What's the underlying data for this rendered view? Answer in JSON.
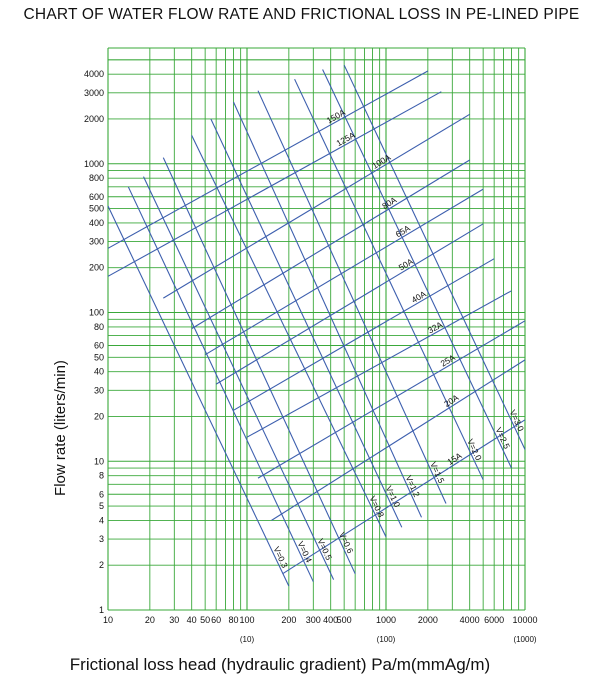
{
  "chart_data": {
    "type": "line",
    "title": "CHART OF WATER FLOW RATE AND FRICTIONAL LOSS IN PE-LINED PIPE",
    "xlabel": "Frictional loss head (hydraulic gradient)   Pa/m(mmAg/m)",
    "ylabel": "Flow rate (liters/min)",
    "x_scale": "log",
    "y_scale": "log",
    "xlim": [
      10,
      10000
    ],
    "ylim": [
      1,
      6000
    ],
    "grid": true,
    "x_ticks": [
      {
        "v": 10,
        "t": "10"
      },
      {
        "v": 20,
        "t": "20"
      },
      {
        "v": 30,
        "t": "30"
      },
      {
        "v": 40,
        "t": "40"
      },
      {
        "v": 50,
        "t": "50"
      },
      {
        "v": 60,
        "t": "60"
      },
      {
        "v": 80,
        "t": "80"
      },
      {
        "v": 100,
        "t": "100"
      },
      {
        "v": 200,
        "t": "200"
      },
      {
        "v": 300,
        "t": "300"
      },
      {
        "v": 400,
        "t": "400"
      },
      {
        "v": 500,
        "t": "500"
      },
      {
        "v": 1000,
        "t": "1000"
      },
      {
        "v": 2000,
        "t": "2000"
      },
      {
        "v": 4000,
        "t": "4000"
      },
      {
        "v": 6000,
        "t": "6000"
      },
      {
        "v": 10000,
        "t": "10000"
      }
    ],
    "x_secondary_ticks": [
      {
        "v": 100,
        "t": "(10)"
      },
      {
        "v": 1000,
        "t": "(100)"
      },
      {
        "v": 10000,
        "t": "(1000)"
      }
    ],
    "y_ticks": [
      {
        "v": 1,
        "t": "1"
      },
      {
        "v": 2,
        "t": "2"
      },
      {
        "v": 3,
        "t": "3"
      },
      {
        "v": 4,
        "t": "4"
      },
      {
        "v": 5,
        "t": "5"
      },
      {
        "v": 6,
        "t": "6"
      },
      {
        "v": 8,
        "t": "8"
      },
      {
        "v": 10,
        "t": "10"
      },
      {
        "v": 20,
        "t": "20"
      },
      {
        "v": 30,
        "t": "30"
      },
      {
        "v": 40,
        "t": "40"
      },
      {
        "v": 50,
        "t": "50"
      },
      {
        "v": 60,
        "t": "60"
      },
      {
        "v": 80,
        "t": "80"
      },
      {
        "v": 100,
        "t": "100"
      },
      {
        "v": 200,
        "t": "200"
      },
      {
        "v": 300,
        "t": "300"
      },
      {
        "v": 400,
        "t": "400"
      },
      {
        "v": 500,
        "t": "500"
      },
      {
        "v": 600,
        "t": "600"
      },
      {
        "v": 800,
        "t": "800"
      },
      {
        "v": 1000,
        "t": "1000"
      },
      {
        "v": 2000,
        "t": "2000"
      },
      {
        "v": 3000,
        "t": "3000"
      },
      {
        "v": 4000,
        "t": "4000"
      }
    ],
    "series": [
      {
        "name": "150A",
        "x": [
          10,
          2000
        ],
        "y": [
          270,
          4200
        ]
      },
      {
        "name": "125A",
        "x": [
          10,
          2500
        ],
        "y": [
          175,
          3050
        ]
      },
      {
        "name": "100A",
        "x": [
          25,
          4000
        ],
        "y": [
          125,
          2150
        ]
      },
      {
        "name": "80A",
        "x": [
          40,
          4000
        ],
        "y": [
          78,
          1060
        ]
      },
      {
        "name": "65A",
        "x": [
          50,
          5000
        ],
        "y": [
          52,
          675
        ]
      },
      {
        "name": "50A",
        "x": [
          60,
          5000
        ],
        "y": [
          33,
          395
        ]
      },
      {
        "name": "40A",
        "x": [
          80,
          6000
        ],
        "y": [
          22,
          230
        ]
      },
      {
        "name": "32A",
        "x": [
          100,
          8000
        ],
        "y": [
          14.5,
          140
        ]
      },
      {
        "name": "25A",
        "x": [
          120,
          10000
        ],
        "y": [
          7.7,
          88
        ]
      },
      {
        "name": "20A",
        "x": [
          150,
          10000
        ],
        "y": [
          4,
          48
        ]
      },
      {
        "name": "15A",
        "x": [
          180,
          10000
        ],
        "y": [
          1.75,
          19
        ]
      },
      {
        "name": "V=0.3",
        "x": [
          10,
          200
        ],
        "y": [
          520,
          1.45
        ]
      },
      {
        "name": "V=0.4",
        "x": [
          14,
          300
        ],
        "y": [
          700,
          1.55
        ]
      },
      {
        "name": "V=0.5",
        "x": [
          18,
          420
        ],
        "y": [
          820,
          1.6
        ]
      },
      {
        "name": "V=0.6",
        "x": [
          25,
          600
        ],
        "y": [
          1100,
          1.75
        ]
      },
      {
        "name": "V=0.8",
        "x": [
          40,
          1000
        ],
        "y": [
          1550,
          3.1
        ]
      },
      {
        "name": "V=1.0",
        "x": [
          55,
          1300
        ],
        "y": [
          2000,
          3.6
        ]
      },
      {
        "name": "V=1.2",
        "x": [
          80,
          1800
        ],
        "y": [
          2600,
          4.2
        ]
      },
      {
        "name": "V=1.5",
        "x": [
          120,
          2700
        ],
        "y": [
          3100,
          5.2
        ]
      },
      {
        "name": "V=2.0",
        "x": [
          220,
          5000
        ],
        "y": [
          3700,
          7.5
        ]
      },
      {
        "name": "V=2.5",
        "x": [
          350,
          8000
        ],
        "y": [
          4300,
          9
        ]
      },
      {
        "name": "V=3.0",
        "x": [
          500,
          10000
        ],
        "y": [
          4600,
          12
        ]
      }
    ]
  }
}
